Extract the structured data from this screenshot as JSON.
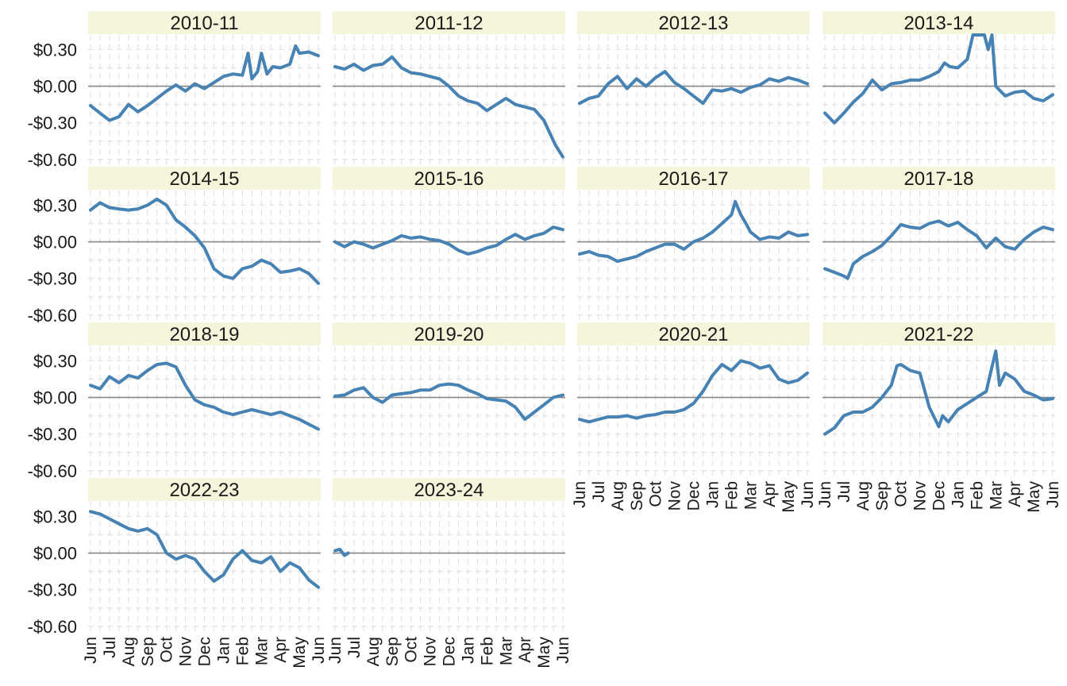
{
  "chart_data": {
    "type": "line",
    "facet_layout": {
      "columns": 4,
      "rows": 4
    },
    "color": "#4682B4",
    "strip_fill": "#F5F5DC",
    "zero_line_color": "#888888",
    "grid": true,
    "ylim": [
      -0.66,
      0.42
    ],
    "y_ticks": [
      {
        "value": 0.3,
        "label": "$0.30"
      },
      {
        "value": 0.0,
        "label": "$0.00"
      },
      {
        "value": -0.3,
        "label": "-$0.30"
      },
      {
        "value": -0.6,
        "label": "-$0.60"
      }
    ],
    "x_ticks": [
      "Jun",
      "Jul",
      "Aug",
      "Sep",
      "Oct",
      "Nov",
      "Dec",
      "Jan",
      "Feb",
      "Mar",
      "Apr",
      "May",
      "Jun"
    ],
    "x_unit": "month offset from June 1 (0 = Jun, 12 = following Jun)",
    "panels": [
      {
        "label": "2010-11",
        "x": [
          0,
          0.5,
          1,
          1.5,
          2,
          2.5,
          3,
          3.5,
          4,
          4.5,
          5,
          5.5,
          6,
          6.5,
          7,
          7.5,
          8,
          8.3,
          8.5,
          8.8,
          9,
          9.3,
          9.6,
          10,
          10.5,
          10.8,
          11,
          11.5,
          12
        ],
        "y": [
          -0.16,
          -0.22,
          -0.28,
          -0.25,
          -0.15,
          -0.21,
          -0.16,
          -0.1,
          -0.04,
          0.01,
          -0.04,
          0.02,
          -0.02,
          0.03,
          0.08,
          0.1,
          0.09,
          0.27,
          0.06,
          0.12,
          0.27,
          0.1,
          0.16,
          0.15,
          0.18,
          0.33,
          0.27,
          0.28,
          0.25
        ]
      },
      {
        "label": "2011-12",
        "x": [
          0,
          0.5,
          1,
          1.5,
          2,
          2.5,
          3,
          3.5,
          4,
          4.5,
          5,
          5.5,
          6,
          6.5,
          7,
          7.5,
          8,
          8.5,
          9,
          9.5,
          10,
          10.5,
          11,
          11.3,
          11.6,
          12
        ],
        "y": [
          0.16,
          0.14,
          0.18,
          0.13,
          0.17,
          0.18,
          0.24,
          0.15,
          0.11,
          0.1,
          0.08,
          0.06,
          0.0,
          -0.08,
          -0.12,
          -0.14,
          -0.2,
          -0.15,
          -0.1,
          -0.15,
          -0.17,
          -0.19,
          -0.28,
          -0.38,
          -0.48,
          -0.58
        ]
      },
      {
        "label": "2012-13",
        "x": [
          0,
          0.5,
          1,
          1.5,
          2,
          2.5,
          3,
          3.5,
          4,
          4.5,
          5,
          5.5,
          6,
          6.5,
          7,
          7.5,
          8,
          8.5,
          9,
          9.5,
          10,
          10.5,
          11,
          11.5,
          12
        ],
        "y": [
          -0.14,
          -0.1,
          -0.08,
          0.02,
          0.08,
          -0.02,
          0.06,
          0.0,
          0.07,
          0.12,
          0.03,
          -0.02,
          -0.08,
          -0.14,
          -0.03,
          -0.04,
          -0.02,
          -0.05,
          -0.01,
          0.01,
          0.06,
          0.04,
          0.07,
          0.05,
          0.02
        ]
      },
      {
        "label": "2013-14",
        "x": [
          0,
          0.5,
          1,
          1.5,
          2,
          2.5,
          3,
          3.5,
          4,
          4.5,
          5,
          5.5,
          6,
          6.3,
          6.6,
          7,
          7.5,
          7.8,
          8,
          8.2,
          8.4,
          8.6,
          8.8,
          9,
          9.5,
          10,
          10.5,
          11,
          11.5,
          12
        ],
        "y": [
          -0.22,
          -0.3,
          -0.22,
          -0.13,
          -0.06,
          0.05,
          -0.03,
          0.02,
          0.03,
          0.05,
          0.05,
          0.08,
          0.12,
          0.19,
          0.16,
          0.15,
          0.22,
          0.42,
          0.55,
          0.42,
          0.58,
          0.3,
          0.5,
          0.0,
          -0.08,
          -0.05,
          -0.04,
          -0.1,
          -0.12,
          -0.07
        ]
      },
      {
        "label": "2014-15",
        "x": [
          0,
          0.5,
          1,
          1.5,
          2,
          2.5,
          3,
          3.5,
          4,
          4.5,
          5,
          5.5,
          6,
          6.5,
          7,
          7.5,
          8,
          8.5,
          9,
          9.5,
          10,
          10.5,
          11,
          11.5,
          12
        ],
        "y": [
          0.26,
          0.32,
          0.28,
          0.27,
          0.26,
          0.27,
          0.3,
          0.35,
          0.3,
          0.18,
          0.12,
          0.05,
          -0.05,
          -0.22,
          -0.28,
          -0.3,
          -0.22,
          -0.2,
          -0.15,
          -0.18,
          -0.25,
          -0.24,
          -0.22,
          -0.26,
          -0.34
        ]
      },
      {
        "label": "2015-16",
        "x": [
          0,
          0.5,
          1,
          1.5,
          2,
          2.5,
          3,
          3.5,
          4,
          4.5,
          5,
          5.5,
          6,
          6.5,
          7,
          7.5,
          8,
          8.5,
          9,
          9.5,
          10,
          10.5,
          11,
          11.5,
          12
        ],
        "y": [
          0.0,
          -0.04,
          0.0,
          -0.02,
          -0.05,
          -0.02,
          0.01,
          0.05,
          0.03,
          0.04,
          0.02,
          0.01,
          -0.02,
          -0.07,
          -0.1,
          -0.08,
          -0.05,
          -0.03,
          0.02,
          0.06,
          0.02,
          0.05,
          0.07,
          0.12,
          0.1
        ]
      },
      {
        "label": "2016-17",
        "x": [
          0,
          0.5,
          1,
          1.5,
          2,
          2.5,
          3,
          3.5,
          4,
          4.5,
          5,
          5.5,
          6,
          6.5,
          7,
          7.5,
          8,
          8.2,
          8.5,
          8.8,
          9,
          9.5,
          10,
          10.5,
          11,
          11.5,
          12
        ],
        "y": [
          -0.1,
          -0.08,
          -0.11,
          -0.12,
          -0.16,
          -0.14,
          -0.12,
          -0.08,
          -0.05,
          -0.02,
          -0.02,
          -0.06,
          0.0,
          0.03,
          0.08,
          0.15,
          0.22,
          0.33,
          0.22,
          0.14,
          0.08,
          0.02,
          0.04,
          0.03,
          0.08,
          0.05,
          0.06
        ]
      },
      {
        "label": "2017-18",
        "x": [
          0,
          0.5,
          1,
          1.2,
          1.5,
          2,
          2.5,
          3,
          3.5,
          4,
          4.5,
          5,
          5.5,
          6,
          6.5,
          7,
          7.5,
          8,
          8.5,
          9,
          9.5,
          10,
          10.5,
          11,
          11.5,
          12
        ],
        "y": [
          -0.22,
          -0.25,
          -0.28,
          -0.3,
          -0.18,
          -0.12,
          -0.08,
          -0.03,
          0.05,
          0.14,
          0.12,
          0.11,
          0.15,
          0.17,
          0.13,
          0.16,
          0.1,
          0.05,
          -0.05,
          0.03,
          -0.04,
          -0.06,
          0.02,
          0.08,
          0.12,
          0.1
        ]
      },
      {
        "label": "2018-19",
        "x": [
          0,
          0.5,
          1,
          1.5,
          2,
          2.5,
          3,
          3.5,
          4,
          4.5,
          5,
          5.5,
          6,
          6.5,
          7,
          7.5,
          8,
          8.5,
          9,
          9.5,
          10,
          10.5,
          11,
          11.5,
          12
        ],
        "y": [
          0.1,
          0.07,
          0.17,
          0.12,
          0.18,
          0.16,
          0.22,
          0.27,
          0.28,
          0.25,
          0.1,
          -0.02,
          -0.06,
          -0.08,
          -0.12,
          -0.14,
          -0.12,
          -0.1,
          -0.12,
          -0.14,
          -0.12,
          -0.15,
          -0.18,
          -0.22,
          -0.26
        ]
      },
      {
        "label": "2019-20",
        "x": [
          0,
          0.5,
          1,
          1.5,
          2,
          2.5,
          3,
          3.5,
          4,
          4.5,
          5,
          5.5,
          6,
          6.5,
          7,
          7.5,
          8,
          8.5,
          9,
          9.5,
          10,
          10.5,
          11,
          11.5,
          12
        ],
        "y": [
          0.01,
          0.02,
          0.06,
          0.08,
          0.0,
          -0.04,
          0.02,
          0.03,
          0.04,
          0.06,
          0.06,
          0.1,
          0.11,
          0.1,
          0.06,
          0.03,
          -0.01,
          -0.02,
          -0.03,
          -0.08,
          -0.18,
          -0.12,
          -0.06,
          0.0,
          0.02
        ]
      },
      {
        "label": "2020-21",
        "x": [
          0,
          0.5,
          1,
          1.5,
          2,
          2.5,
          3,
          3.5,
          4,
          4.5,
          5,
          5.5,
          6,
          6.5,
          7,
          7.5,
          8,
          8.5,
          9,
          9.5,
          10,
          10.5,
          11,
          11.5,
          12
        ],
        "y": [
          -0.18,
          -0.2,
          -0.18,
          -0.16,
          -0.16,
          -0.15,
          -0.17,
          -0.15,
          -0.14,
          -0.12,
          -0.12,
          -0.1,
          -0.05,
          0.05,
          0.18,
          0.27,
          0.22,
          0.3,
          0.28,
          0.24,
          0.26,
          0.15,
          0.12,
          0.14,
          0.2
        ]
      },
      {
        "label": "2021-22",
        "x": [
          0,
          0.5,
          1,
          1.5,
          2,
          2.5,
          3,
          3.5,
          3.8,
          4,
          4.5,
          5,
          5.5,
          6,
          6.2,
          6.5,
          7,
          7.5,
          8,
          8.5,
          8.8,
          9,
          9.2,
          9.5,
          10,
          10.5,
          11,
          11.5,
          12
        ],
        "y": [
          -0.3,
          -0.25,
          -0.15,
          -0.12,
          -0.12,
          -0.08,
          0.0,
          0.1,
          0.26,
          0.27,
          0.22,
          0.2,
          -0.08,
          -0.24,
          -0.15,
          -0.2,
          -0.1,
          -0.05,
          0.0,
          0.05,
          0.25,
          0.38,
          0.1,
          0.2,
          0.15,
          0.05,
          0.02,
          -0.02,
          -0.01
        ]
      },
      {
        "label": "2022-23",
        "x": [
          0,
          0.5,
          1,
          1.5,
          2,
          2.5,
          3,
          3.5,
          4,
          4.5,
          5,
          5.5,
          6,
          6.5,
          7,
          7.5,
          8,
          8.5,
          9,
          9.5,
          10,
          10.5,
          11,
          11.5,
          12
        ],
        "y": [
          0.34,
          0.32,
          0.28,
          0.24,
          0.2,
          0.18,
          0.2,
          0.15,
          0.0,
          -0.05,
          -0.02,
          -0.05,
          -0.15,
          -0.23,
          -0.18,
          -0.05,
          0.02,
          -0.06,
          -0.08,
          -0.03,
          -0.15,
          -0.08,
          -0.12,
          -0.22,
          -0.28
        ]
      },
      {
        "label": "2023-24",
        "x": [
          0,
          0.25,
          0.5,
          0.7
        ],
        "y": [
          0.02,
          0.03,
          -0.02,
          0.0
        ]
      }
    ]
  }
}
